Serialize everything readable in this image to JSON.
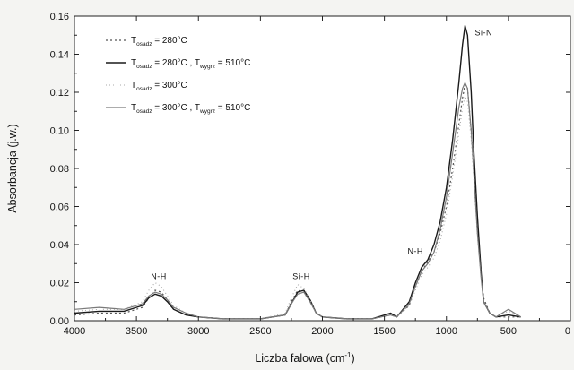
{
  "chart_data": {
    "type": "line",
    "xlabel": "Liczba falowa (cm",
    "xlabel_sup": "-1",
    "xlabel_end": ")",
    "ylabel": "Absorbancja (j.w.)",
    "xlim": [
      4000,
      0
    ],
    "ylim": [
      0,
      0.16
    ],
    "x_ticks": [
      4000,
      3500,
      3000,
      2500,
      2000,
      1500,
      1000,
      500,
      0
    ],
    "x_tick_labels": [
      "4000",
      "3500",
      "3000",
      "2500",
      "2000",
      "1500",
      "1000",
      "500",
      "0"
    ],
    "y_ticks": [
      0,
      0.02,
      0.04,
      0.06,
      0.08,
      0.1,
      0.12,
      0.14,
      0.16
    ],
    "y_tick_labels": [
      "0.00",
      "0.02",
      "0.04",
      "0.06",
      "0.08",
      "0.10",
      "0.12",
      "0.14",
      "0.16"
    ],
    "grid": false,
    "legend_position": "top-left",
    "series": [
      {
        "name": "T osadz = 280°C",
        "legend_parts": {
          "T": "T",
          "sub1": "osadz",
          "mid": " = 280°C"
        },
        "color": "#555555",
        "dash": "2,3",
        "width": 1.2,
        "x": [
          4000,
          3800,
          3600,
          3450,
          3400,
          3350,
          3300,
          3250,
          3200,
          3100,
          3000,
          2800,
          2500,
          2300,
          2250,
          2200,
          2150,
          2100,
          2050,
          2000,
          1800,
          1600,
          1450,
          1400,
          1300,
          1250,
          1200,
          1150,
          1100,
          1050,
          1000,
          950,
          900,
          870,
          850,
          830,
          800,
          780,
          750,
          720,
          700,
          650,
          600,
          500,
          400
        ],
        "y": [
          0.003,
          0.004,
          0.004,
          0.007,
          0.012,
          0.016,
          0.015,
          0.011,
          0.006,
          0.003,
          0.002,
          0.001,
          0.001,
          0.003,
          0.01,
          0.016,
          0.015,
          0.01,
          0.004,
          0.002,
          0.001,
          0.001,
          0.003,
          0.002,
          0.008,
          0.018,
          0.026,
          0.031,
          0.036,
          0.046,
          0.06,
          0.08,
          0.103,
          0.117,
          0.124,
          0.122,
          0.1,
          0.08,
          0.05,
          0.025,
          0.012,
          0.004,
          0.002,
          0.002,
          0.002
        ]
      },
      {
        "name": "T osadz = 280°C, T wygrz = 510°C",
        "legend_parts": {
          "T": "T",
          "sub1": "osadz",
          "mid": " = 280°C , T",
          "sub2": "wygrz",
          "end": " = 510°C"
        },
        "color": "#1a1a1a",
        "dash": "",
        "width": 1.4,
        "x": [
          4000,
          3800,
          3600,
          3450,
          3400,
          3350,
          3300,
          3250,
          3200,
          3100,
          3000,
          2800,
          2500,
          2300,
          2250,
          2200,
          2150,
          2100,
          2050,
          2000,
          1800,
          1600,
          1450,
          1400,
          1300,
          1250,
          1200,
          1150,
          1100,
          1050,
          1000,
          950,
          900,
          870,
          850,
          830,
          800,
          780,
          750,
          720,
          700,
          650,
          600,
          500,
          400
        ],
        "y": [
          0.004,
          0.005,
          0.005,
          0.008,
          0.012,
          0.014,
          0.013,
          0.01,
          0.006,
          0.003,
          0.002,
          0.001,
          0.001,
          0.003,
          0.009,
          0.015,
          0.016,
          0.011,
          0.004,
          0.002,
          0.001,
          0.001,
          0.004,
          0.002,
          0.01,
          0.02,
          0.028,
          0.032,
          0.04,
          0.052,
          0.07,
          0.095,
          0.125,
          0.145,
          0.155,
          0.15,
          0.12,
          0.09,
          0.055,
          0.025,
          0.01,
          0.004,
          0.002,
          0.003,
          0.002
        ]
      },
      {
        "name": "T osadz = 300°C",
        "legend_parts": {
          "T": "T",
          "sub1": "osadz",
          "mid": " = 300°C"
        },
        "color": "#aaaaaa",
        "dash": "1,3",
        "width": 1.1,
        "x": [
          4000,
          3800,
          3600,
          3450,
          3400,
          3350,
          3300,
          3250,
          3200,
          3100,
          3000,
          2800,
          2500,
          2300,
          2250,
          2200,
          2150,
          2100,
          2050,
          2000,
          1800,
          1600,
          1450,
          1400,
          1300,
          1250,
          1200,
          1150,
          1100,
          1050,
          1000,
          950,
          900,
          870,
          850,
          830,
          800,
          780,
          750,
          720,
          700,
          650,
          600,
          500,
          400
        ],
        "y": [
          0.005,
          0.006,
          0.006,
          0.01,
          0.016,
          0.02,
          0.018,
          0.013,
          0.008,
          0.004,
          0.002,
          0.001,
          0.001,
          0.004,
          0.012,
          0.019,
          0.017,
          0.011,
          0.004,
          0.002,
          0.001,
          0.001,
          0.003,
          0.002,
          0.008,
          0.016,
          0.024,
          0.028,
          0.033,
          0.042,
          0.056,
          0.076,
          0.098,
          0.112,
          0.118,
          0.115,
          0.095,
          0.075,
          0.045,
          0.022,
          0.01,
          0.004,
          0.002,
          0.005,
          0.002
        ]
      },
      {
        "name": "T osadz = 300°C, T wygrz = 510°C",
        "legend_parts": {
          "T": "T",
          "sub1": "osadz",
          "mid": " = 300°C , T",
          "sub2": "wygrz",
          "end": " = 510°C"
        },
        "color": "#7a7a7a",
        "dash": "",
        "width": 1.2,
        "x": [
          4000,
          3800,
          3600,
          3450,
          3400,
          3350,
          3300,
          3250,
          3200,
          3100,
          3000,
          2800,
          2500,
          2300,
          2250,
          2200,
          2150,
          2100,
          2050,
          2000,
          1800,
          1600,
          1450,
          1400,
          1300,
          1250,
          1200,
          1150,
          1100,
          1050,
          1000,
          950,
          900,
          870,
          850,
          830,
          800,
          780,
          750,
          720,
          700,
          650,
          600,
          500,
          400
        ],
        "y": [
          0.006,
          0.007,
          0.006,
          0.009,
          0.013,
          0.015,
          0.014,
          0.011,
          0.007,
          0.004,
          0.002,
          0.001,
          0.001,
          0.003,
          0.009,
          0.014,
          0.015,
          0.01,
          0.004,
          0.002,
          0.001,
          0.001,
          0.003,
          0.002,
          0.009,
          0.018,
          0.026,
          0.03,
          0.036,
          0.048,
          0.065,
          0.088,
          0.112,
          0.122,
          0.125,
          0.122,
          0.1,
          0.078,
          0.046,
          0.022,
          0.01,
          0.004,
          0.002,
          0.006,
          0.002
        ]
      }
    ],
    "annotations": [
      {
        "text": "N-H",
        "x": 3320,
        "y": 0.022
      },
      {
        "text": "Si-H",
        "x": 2170,
        "y": 0.022
      },
      {
        "text": "N-H",
        "x": 1250,
        "y": 0.035
      },
      {
        "text": "Si-N",
        "x": 700,
        "y": 0.15
      }
    ]
  }
}
